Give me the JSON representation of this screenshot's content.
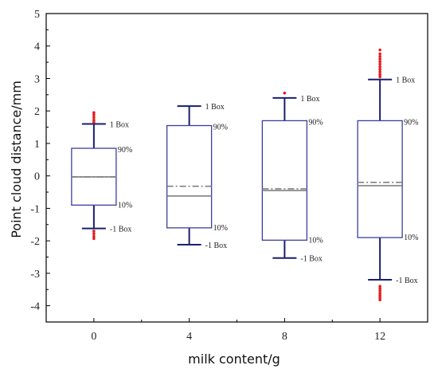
{
  "chart_data": {
    "type": "box",
    "title": "",
    "xlabel": "milk content/g",
    "ylabel": "Point cloud distance/mm",
    "ylim": [
      -4.5,
      5
    ],
    "yticks": [
      -4,
      -3,
      -2,
      -1,
      0,
      1,
      2,
      3,
      4,
      5
    ],
    "categories": [
      "0",
      "4",
      "8",
      "12"
    ],
    "grid": false,
    "colors": {
      "box": "#3a3f9e",
      "whisker": "#1a1f6e",
      "median": "#808080",
      "outlier": "#e8191a"
    },
    "annotations": {
      "upper_whisker": "1 Box",
      "lower_whisker": "-1 Box",
      "q_upper": "90%",
      "q_lower": "10%"
    },
    "boxes": [
      {
        "category": "0",
        "box_upper": 0.85,
        "box_lower": -0.9,
        "median": -0.03,
        "mean": -0.03,
        "whisker_upper": 1.6,
        "whisker_lower": -1.62,
        "outliers": [
          1.65,
          1.72,
          1.8,
          1.88,
          1.95,
          -1.7,
          -1.78,
          -1.86,
          -1.93
        ]
      },
      {
        "category": "4",
        "box_upper": 1.55,
        "box_lower": -1.6,
        "median": -0.62,
        "mean": -0.32,
        "whisker_upper": 2.15,
        "whisker_lower": -2.12,
        "outliers": []
      },
      {
        "category": "8",
        "box_upper": 1.7,
        "box_lower": -1.98,
        "median": -0.45,
        "mean": -0.4,
        "whisker_upper": 2.4,
        "whisker_lower": -2.53,
        "outliers": [
          2.55
        ]
      },
      {
        "category": "12",
        "box_upper": 1.7,
        "box_lower": -1.9,
        "median": -0.3,
        "mean": -0.2,
        "whisker_upper": 2.97,
        "whisker_lower": -3.2,
        "outliers": [
          3.05,
          3.12,
          3.2,
          3.28,
          3.36,
          3.44,
          3.52,
          3.6,
          3.68,
          3.76,
          3.88,
          -3.4,
          -3.47,
          -3.54,
          -3.61,
          -3.68,
          -3.75,
          -3.82
        ]
      }
    ]
  }
}
